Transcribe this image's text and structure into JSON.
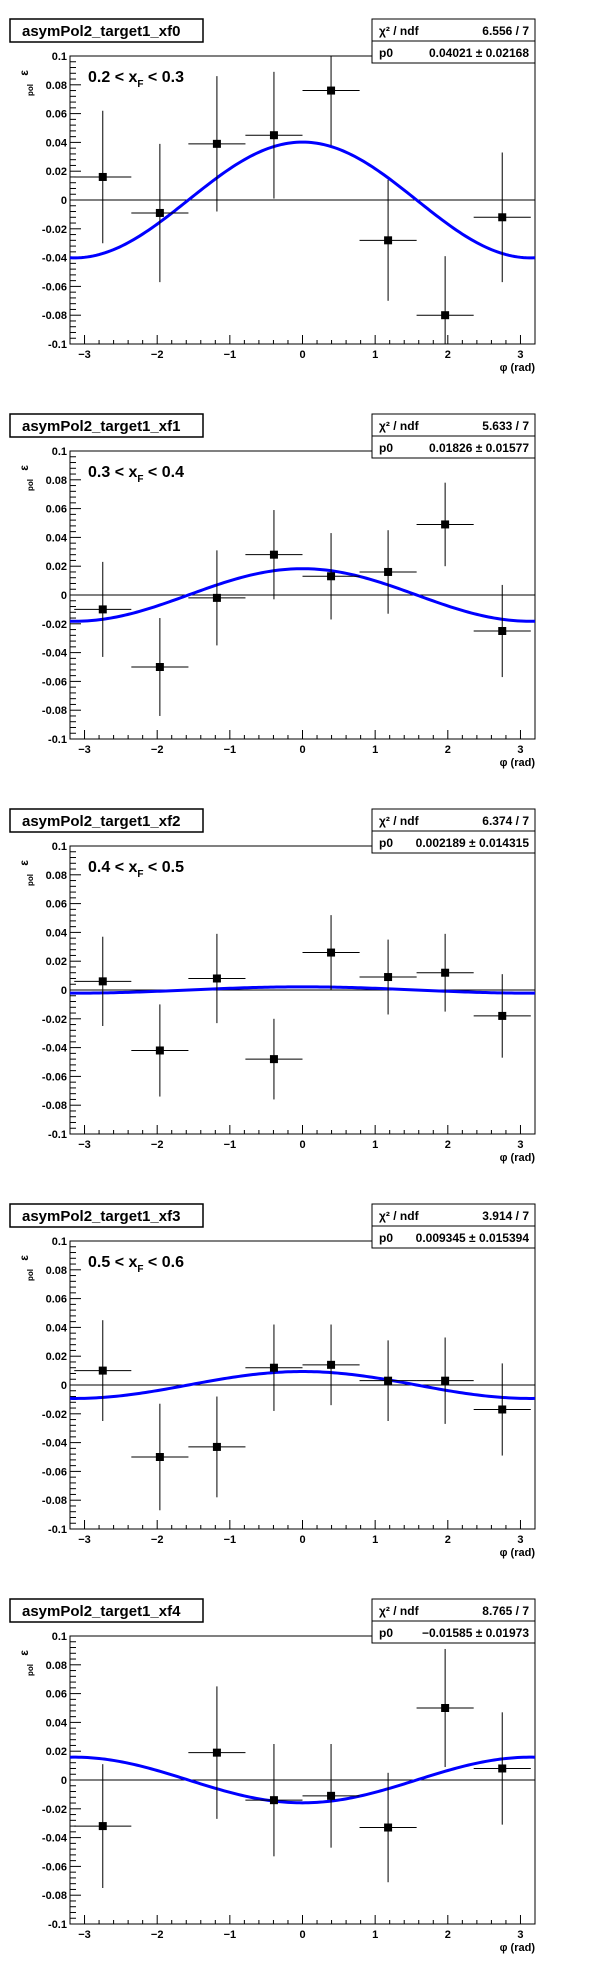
{
  "colors": {
    "fit": "#0000ff",
    "marker": "#000000",
    "frame": "#000000"
  },
  "axis_labels": {
    "y": "ε",
    "y_sub": "pol",
    "x": "φ (rad)"
  },
  "stat_labels": {
    "chi2": "χ² / ndf",
    "p0": "p0"
  },
  "chart_data": [
    {
      "type": "scatter",
      "title": "asymPol2_target1_xf0",
      "bin_label": {
        "lo": "0.2",
        "sym": "x",
        "sub": "F",
        "hi": "0.3"
      },
      "stats": {
        "chi2_ndf": "6.556 / 7",
        "p0": "0.04021 ± 0.02168"
      },
      "fit": {
        "function": "p0*cos(x)",
        "p0": 0.04021
      },
      "xlim": [
        -3.2,
        3.2
      ],
      "ylim": [
        -0.1,
        0.1
      ],
      "x_ticks": [
        "-3",
        "-2",
        "-1",
        "0",
        "1",
        "2",
        "3"
      ],
      "y_ticks": [
        "-0.1",
        "-0.08",
        "-0.06",
        "-0.04",
        "-0.02",
        "0",
        "0.02",
        "0.04",
        "0.06",
        "0.08",
        "0.1"
      ],
      "points": [
        {
          "x": -2.749,
          "y": 0.016,
          "ex": 0.393,
          "ey": 0.046
        },
        {
          "x": -1.963,
          "y": -0.009,
          "ex": 0.393,
          "ey": 0.048
        },
        {
          "x": -1.178,
          "y": 0.039,
          "ex": 0.393,
          "ey": 0.047
        },
        {
          "x": -0.393,
          "y": 0.045,
          "ex": 0.393,
          "ey": 0.044
        },
        {
          "x": 0.393,
          "y": 0.076,
          "ex": 0.393,
          "ey": 0.038
        },
        {
          "x": 1.178,
          "y": -0.028,
          "ex": 0.393,
          "ey": 0.042
        },
        {
          "x": 1.963,
          "y": -0.08,
          "ex": 0.393,
          "ey": 0.041
        },
        {
          "x": 2.749,
          "y": -0.012,
          "ex": 0.393,
          "ey": 0.045
        }
      ]
    },
    {
      "type": "scatter",
      "title": "asymPol2_target1_xf1",
      "bin_label": {
        "lo": "0.3",
        "sym": "x",
        "sub": "F",
        "hi": "0.4"
      },
      "stats": {
        "chi2_ndf": "5.633 / 7",
        "p0": "0.01826 ± 0.01577"
      },
      "fit": {
        "function": "p0*cos(x)",
        "p0": 0.01826
      },
      "xlim": [
        -3.2,
        3.2
      ],
      "ylim": [
        -0.1,
        0.1
      ],
      "x_ticks": [
        "-3",
        "-2",
        "-1",
        "0",
        "1",
        "2",
        "3"
      ],
      "y_ticks": [
        "-0.1",
        "-0.08",
        "-0.06",
        "-0.04",
        "-0.02",
        "0",
        "0.02",
        "0.04",
        "0.06",
        "0.08",
        "0.1"
      ],
      "points": [
        {
          "x": -2.749,
          "y": -0.01,
          "ex": 0.393,
          "ey": 0.033
        },
        {
          "x": -1.963,
          "y": -0.05,
          "ex": 0.393,
          "ey": 0.034
        },
        {
          "x": -1.178,
          "y": -0.002,
          "ex": 0.393,
          "ey": 0.033
        },
        {
          "x": -0.393,
          "y": 0.028,
          "ex": 0.393,
          "ey": 0.031
        },
        {
          "x": 0.393,
          "y": 0.013,
          "ex": 0.393,
          "ey": 0.03
        },
        {
          "x": 1.178,
          "y": 0.016,
          "ex": 0.393,
          "ey": 0.029
        },
        {
          "x": 1.963,
          "y": 0.049,
          "ex": 0.393,
          "ey": 0.029
        },
        {
          "x": 2.749,
          "y": -0.025,
          "ex": 0.393,
          "ey": 0.032
        }
      ]
    },
    {
      "type": "scatter",
      "title": "asymPol2_target1_xf2",
      "bin_label": {
        "lo": "0.4",
        "sym": "x",
        "sub": "F",
        "hi": "0.5"
      },
      "stats": {
        "chi2_ndf": "6.374 / 7",
        "p0": "0.002189 ± 0.014315"
      },
      "fit": {
        "function": "p0*cos(x)",
        "p0": 0.002189
      },
      "xlim": [
        -3.2,
        3.2
      ],
      "ylim": [
        -0.1,
        0.1
      ],
      "x_ticks": [
        "-3",
        "-2",
        "-1",
        "0",
        "1",
        "2",
        "3"
      ],
      "y_ticks": [
        "-0.1",
        "-0.08",
        "-0.06",
        "-0.04",
        "-0.02",
        "0",
        "0.02",
        "0.04",
        "0.06",
        "0.08",
        "0.1"
      ],
      "points": [
        {
          "x": -2.749,
          "y": 0.006,
          "ex": 0.393,
          "ey": 0.031
        },
        {
          "x": -1.963,
          "y": -0.042,
          "ex": 0.393,
          "ey": 0.032
        },
        {
          "x": -1.178,
          "y": 0.008,
          "ex": 0.393,
          "ey": 0.031
        },
        {
          "x": -0.393,
          "y": -0.048,
          "ex": 0.393,
          "ey": 0.028
        },
        {
          "x": 0.393,
          "y": 0.026,
          "ex": 0.393,
          "ey": 0.026
        },
        {
          "x": 1.178,
          "y": 0.009,
          "ex": 0.393,
          "ey": 0.026
        },
        {
          "x": 1.963,
          "y": 0.012,
          "ex": 0.393,
          "ey": 0.027
        },
        {
          "x": 2.749,
          "y": -0.018,
          "ex": 0.393,
          "ey": 0.029
        }
      ]
    },
    {
      "type": "scatter",
      "title": "asymPol2_target1_xf3",
      "bin_label": {
        "lo": "0.5",
        "sym": "x",
        "sub": "F",
        "hi": "0.6"
      },
      "stats": {
        "chi2_ndf": "3.914 / 7",
        "p0": "0.009345 ± 0.015394"
      },
      "fit": {
        "function": "p0*cos(x)",
        "p0": 0.009345
      },
      "xlim": [
        -3.2,
        3.2
      ],
      "ylim": [
        -0.1,
        0.1
      ],
      "x_ticks": [
        "-3",
        "-2",
        "-1",
        "0",
        "1",
        "2",
        "3"
      ],
      "y_ticks": [
        "-0.1",
        "-0.08",
        "-0.06",
        "-0.04",
        "-0.02",
        "0",
        "0.02",
        "0.04",
        "0.06",
        "0.08",
        "0.1"
      ],
      "points": [
        {
          "x": -2.749,
          "y": 0.01,
          "ex": 0.393,
          "ey": 0.035
        },
        {
          "x": -1.963,
          "y": -0.05,
          "ex": 0.393,
          "ey": 0.037
        },
        {
          "x": -1.178,
          "y": -0.043,
          "ex": 0.393,
          "ey": 0.035
        },
        {
          "x": -0.393,
          "y": 0.012,
          "ex": 0.393,
          "ey": 0.03
        },
        {
          "x": 0.393,
          "y": 0.014,
          "ex": 0.393,
          "ey": 0.028
        },
        {
          "x": 1.178,
          "y": 0.003,
          "ex": 0.393,
          "ey": 0.028
        },
        {
          "x": 1.963,
          "y": 0.003,
          "ex": 0.393,
          "ey": 0.03
        },
        {
          "x": 2.749,
          "y": -0.017,
          "ex": 0.393,
          "ey": 0.032
        }
      ]
    },
    {
      "type": "scatter",
      "title": "asymPol2_target1_xf4",
      "bin_label": null,
      "stats": {
        "chi2_ndf": "8.765 / 7",
        "p0": "−0.01585 ± 0.01973"
      },
      "fit": {
        "function": "p0*cos(x)",
        "p0": -0.01585
      },
      "xlim": [
        -3.2,
        3.2
      ],
      "ylim": [
        -0.1,
        0.1
      ],
      "x_ticks": [
        "-3",
        "-2",
        "-1",
        "0",
        "1",
        "2",
        "3"
      ],
      "y_ticks": [
        "-0.1",
        "-0.08",
        "-0.06",
        "-0.04",
        "-0.02",
        "0",
        "0.02",
        "0.04",
        "0.06",
        "0.08",
        "0.1"
      ],
      "points": [
        {
          "x": -2.749,
          "y": -0.032,
          "ex": 0.393,
          "ey": 0.043
        },
        {
          "x": -1.178,
          "y": 0.019,
          "ex": 0.393,
          "ey": 0.046
        },
        {
          "x": -0.393,
          "y": -0.014,
          "ex": 0.393,
          "ey": 0.039
        },
        {
          "x": 0.393,
          "y": -0.011,
          "ex": 0.393,
          "ey": 0.036
        },
        {
          "x": 1.178,
          "y": -0.033,
          "ex": 0.393,
          "ey": 0.038
        },
        {
          "x": 1.963,
          "y": 0.05,
          "ex": 0.393,
          "ey": 0.041
        },
        {
          "x": 2.749,
          "y": 0.008,
          "ex": 0.393,
          "ey": 0.039
        }
      ]
    }
  ]
}
